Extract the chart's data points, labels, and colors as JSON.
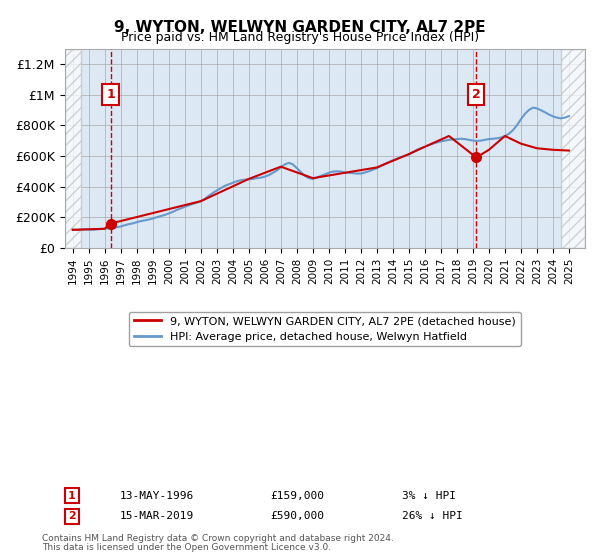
{
  "title": "9, WYTON, WELWYN GARDEN CITY, AL7 2PE",
  "subtitle": "Price paid vs. HM Land Registry's House Price Index (HPI)",
  "xlabel": "",
  "ylabel": "",
  "ylim": [
    0,
    1300000
  ],
  "xlim": [
    1993.5,
    2026.0
  ],
  "yticks": [
    0,
    200000,
    400000,
    600000,
    800000,
    1000000,
    1200000
  ],
  "ytick_labels": [
    "£0",
    "£200K",
    "£400K",
    "£600K",
    "£800K",
    "£1M",
    "£1.2M"
  ],
  "xticks": [
    1994,
    1995,
    1996,
    1997,
    1998,
    1999,
    2000,
    2001,
    2002,
    2003,
    2004,
    2005,
    2006,
    2007,
    2008,
    2009,
    2010,
    2011,
    2012,
    2013,
    2014,
    2015,
    2016,
    2017,
    2018,
    2019,
    2020,
    2021,
    2022,
    2023,
    2024,
    2025
  ],
  "hatch_left_end": 1994.5,
  "hatch_right_start": 2024.5,
  "sale1_x": 1996.36,
  "sale1_y": 159000,
  "sale2_x": 2019.21,
  "sale2_y": 590000,
  "legend_line1": "9, WYTON, WELWYN GARDEN CITY, AL7 2PE (detached house)",
  "legend_line2": "HPI: Average price, detached house, Welwyn Hatfield",
  "annotation1_label": "1",
  "annotation2_label": "2",
  "footer1": "Contains HM Land Registry data © Crown copyright and database right 2024.",
  "footer2": "This data is licensed under the Open Government Licence v3.0.",
  "bg_color": "#dce9f5",
  "hatch_color": "#c0c0c0",
  "plot_line_color": "#cc0000",
  "hpi_line_color": "#6699cc",
  "marker_color": "#cc0000",
  "dashed_line_color": "#cc0000",
  "grid_color": "#aaaaaa",
  "hpi_data_x": [
    1994,
    1994.25,
    1994.5,
    1994.75,
    1995,
    1995.25,
    1995.5,
    1995.75,
    1996,
    1996.25,
    1996.5,
    1996.75,
    1997,
    1997.25,
    1997.5,
    1997.75,
    1998,
    1998.25,
    1998.5,
    1998.75,
    1999,
    1999.25,
    1999.5,
    1999.75,
    2000,
    2000.25,
    2000.5,
    2000.75,
    2001,
    2001.25,
    2001.5,
    2001.75,
    2002,
    2002.25,
    2002.5,
    2002.75,
    2003,
    2003.25,
    2003.5,
    2003.75,
    2004,
    2004.25,
    2004.5,
    2004.75,
    2005,
    2005.25,
    2005.5,
    2005.75,
    2006,
    2006.25,
    2006.5,
    2006.75,
    2007,
    2007.25,
    2007.5,
    2007.75,
    2008,
    2008.25,
    2008.5,
    2008.75,
    2009,
    2009.25,
    2009.5,
    2009.75,
    2010,
    2010.25,
    2010.5,
    2010.75,
    2011,
    2011.25,
    2011.5,
    2011.75,
    2012,
    2012.25,
    2012.5,
    2012.75,
    2013,
    2013.25,
    2013.5,
    2013.75,
    2014,
    2014.25,
    2014.5,
    2014.75,
    2015,
    2015.25,
    2015.5,
    2015.75,
    2016,
    2016.25,
    2016.5,
    2016.75,
    2017,
    2017.25,
    2017.5,
    2017.75,
    2018,
    2018.25,
    2018.5,
    2018.75,
    2019,
    2019.25,
    2019.5,
    2019.75,
    2020,
    2020.25,
    2020.5,
    2020.75,
    2021,
    2021.25,
    2021.5,
    2021.75,
    2022,
    2022.25,
    2022.5,
    2022.75,
    2023,
    2023.25,
    2023.5,
    2023.75,
    2024,
    2024.25,
    2024.5,
    2024.75,
    2025
  ],
  "hpi_data_y": [
    120000,
    118000,
    119000,
    121000,
    120000,
    119000,
    121000,
    123000,
    125000,
    128000,
    132000,
    135000,
    140000,
    148000,
    155000,
    160000,
    168000,
    175000,
    180000,
    185000,
    192000,
    200000,
    208000,
    215000,
    225000,
    235000,
    248000,
    258000,
    268000,
    278000,
    288000,
    295000,
    305000,
    320000,
    340000,
    358000,
    375000,
    390000,
    405000,
    415000,
    425000,
    435000,
    442000,
    445000,
    448000,
    450000,
    455000,
    458000,
    465000,
    475000,
    490000,
    505000,
    525000,
    545000,
    555000,
    545000,
    520000,
    495000,
    470000,
    455000,
    450000,
    458000,
    470000,
    480000,
    490000,
    498000,
    500000,
    498000,
    492000,
    490000,
    488000,
    485000,
    485000,
    492000,
    500000,
    510000,
    520000,
    535000,
    548000,
    560000,
    572000,
    582000,
    592000,
    600000,
    610000,
    625000,
    640000,
    650000,
    660000,
    670000,
    680000,
    688000,
    695000,
    700000,
    705000,
    708000,
    710000,
    712000,
    710000,
    705000,
    700000,
    698000,
    700000,
    705000,
    710000,
    712000,
    715000,
    720000,
    730000,
    745000,
    768000,
    800000,
    840000,
    875000,
    900000,
    915000,
    910000,
    898000,
    885000,
    870000,
    858000,
    850000,
    845000,
    850000,
    860000
  ],
  "property_data_x": [
    1994.0,
    1996.0,
    1996.36,
    2002.0,
    2005.0,
    2007.0,
    2009.0,
    2011.0,
    2013.0,
    2015.0,
    2016.0,
    2017.5,
    2019.21,
    2020.0,
    2021.0,
    2022.0,
    2023.0,
    2024.0,
    2025.0
  ],
  "property_data_y": [
    118000,
    125000,
    159000,
    305000,
    450000,
    530000,
    455000,
    490000,
    525000,
    612000,
    660000,
    730000,
    590000,
    640000,
    730000,
    680000,
    650000,
    640000,
    635000
  ]
}
